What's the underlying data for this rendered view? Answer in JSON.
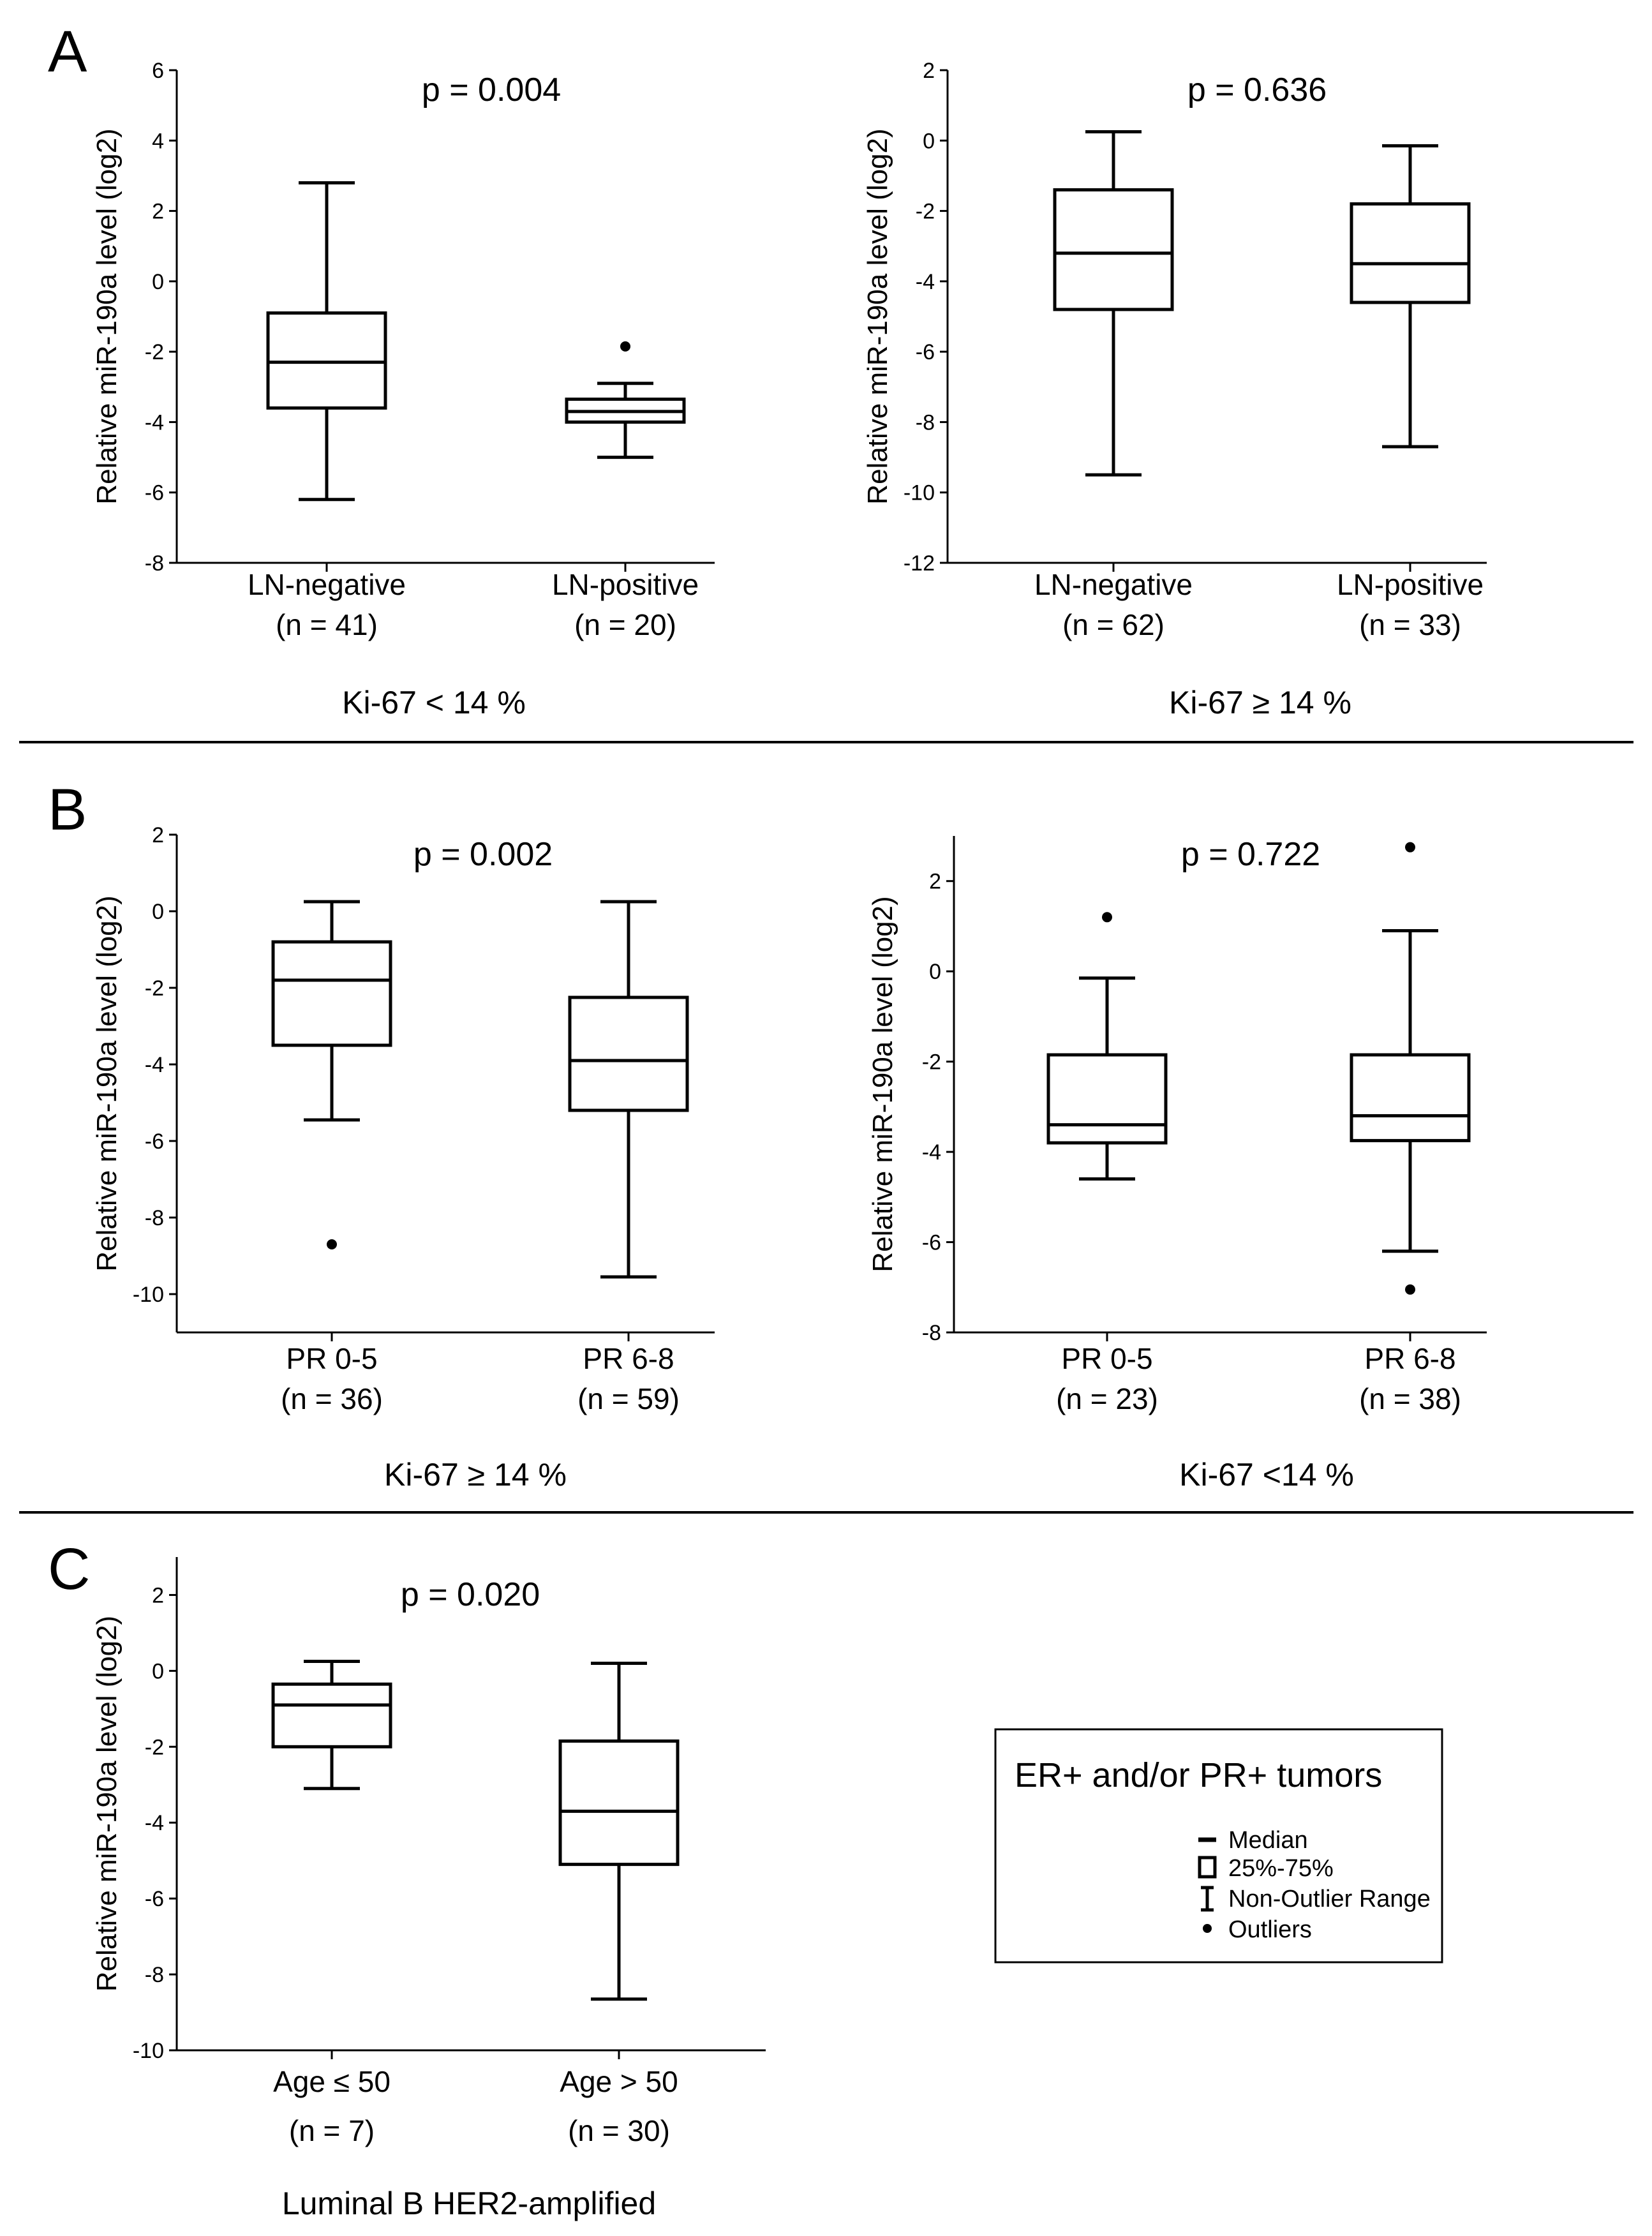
{
  "chart_data": [
    {
      "type": "box",
      "panel": "A",
      "title": "",
      "ylabel": "Relative miR-190a level (log2)",
      "ylim": [
        -8,
        6
      ],
      "yticks": [
        6,
        4,
        2,
        0,
        -2,
        -4,
        -6,
        -8
      ],
      "annotation": "p = 0.004",
      "condition": "Ki-67 < 14 %",
      "categories": [
        "LN-negative",
        "LN-positive"
      ],
      "counts": [
        "(n = 41)",
        "(n = 20)"
      ],
      "series": [
        {
          "name": "LN-negative",
          "min": -6.2,
          "q1": -3.6,
          "median": -2.3,
          "q3": -0.9,
          "max": 2.8,
          "outliers": []
        },
        {
          "name": "LN-positive",
          "min": -5.0,
          "q1": -4.0,
          "median": -3.7,
          "q3": -3.35,
          "max": -2.9,
          "outliers": [
            -1.85
          ]
        }
      ]
    },
    {
      "type": "box",
      "panel": "",
      "title": "",
      "ylabel": "Relative miR-190a level (log2)",
      "ylim": [
        -12,
        2
      ],
      "yticks": [
        2,
        0,
        -2,
        -4,
        -6,
        -8,
        -10,
        -12
      ],
      "annotation": "p = 0.636",
      "condition": "Ki-67 ≥ 14 %",
      "categories": [
        "LN-negative",
        "LN-positive"
      ],
      "counts": [
        "(n = 62)",
        "(n = 33)"
      ],
      "series": [
        {
          "name": "LN-negative",
          "min": -9.5,
          "q1": -4.8,
          "median": -3.2,
          "q3": -1.4,
          "max": 0.25,
          "outliers": []
        },
        {
          "name": "LN-positive",
          "min": -8.7,
          "q1": -4.6,
          "median": -3.5,
          "q3": -1.8,
          "max": -0.15,
          "outliers": []
        }
      ]
    },
    {
      "type": "box",
      "panel": "B",
      "title": "",
      "ylabel": "Relative miR-190a level (log2)",
      "ylim": [
        -11,
        2
      ],
      "yticks": [
        2,
        0,
        -2,
        -4,
        -6,
        -8,
        -10
      ],
      "annotation": "p = 0.002",
      "condition": "Ki-67 ≥ 14 %",
      "categories": [
        "PR 0-5",
        "PR 6-8"
      ],
      "counts": [
        "(n = 36)",
        "(n = 59)"
      ],
      "series": [
        {
          "name": "PR 0-5",
          "min": -5.45,
          "q1": -3.5,
          "median": -1.8,
          "q3": -0.8,
          "max": 0.25,
          "outliers": [
            -8.7
          ]
        },
        {
          "name": "PR 6-8",
          "min": -9.55,
          "q1": -5.2,
          "median": -3.9,
          "q3": -2.25,
          "max": 0.25,
          "outliers": []
        }
      ]
    },
    {
      "type": "box",
      "panel": "",
      "title": "",
      "ylabel": "Relative miR-190a level (log2)",
      "ylim": [
        -8,
        3
      ],
      "yticks": [
        2,
        0,
        -2,
        -4,
        -6,
        -8
      ],
      "annotation": "p = 0.722",
      "condition": "Ki-67 <14 %",
      "categories": [
        "PR 0-5",
        "PR 6-8"
      ],
      "counts": [
        "(n = 23)",
        "(n = 38)"
      ],
      "series": [
        {
          "name": "PR 0-5",
          "min": -4.6,
          "q1": -3.8,
          "median": -3.4,
          "q3": -1.85,
          "max": -0.15,
          "outliers": [
            1.2
          ]
        },
        {
          "name": "PR 6-8",
          "min": -6.2,
          "q1": -3.75,
          "median": -3.2,
          "q3": -1.85,
          "max": 0.9,
          "outliers": [
            2.75,
            -7.05
          ]
        }
      ]
    },
    {
      "type": "box",
      "panel": "C",
      "title": "",
      "ylabel": "Relative miR-190a level (log2)",
      "ylim": [
        -10,
        3
      ],
      "yticks": [
        2,
        0,
        -2,
        -4,
        -6,
        -8,
        -10
      ],
      "annotation": "p = 0.020",
      "condition": "Luminal B HER2-amplified",
      "categories": [
        "Age ≤ 50",
        "Age > 50"
      ],
      "counts": [
        "(n = 7)",
        "(n = 30)"
      ],
      "series": [
        {
          "name": "Age ≤ 50",
          "min": -3.1,
          "q1": -2.0,
          "median": -0.9,
          "q3": -0.35,
          "max": 0.25,
          "outliers": []
        },
        {
          "name": "Age > 50",
          "min": -8.65,
          "q1": -5.1,
          "median": -3.7,
          "q3": -1.85,
          "max": 0.2,
          "outliers": []
        }
      ]
    }
  ],
  "legend": {
    "title": "ER+ and/or PR+ tumors",
    "items": [
      "Median",
      "25%-75%",
      "Non-Outlier Range",
      "Outliers"
    ]
  }
}
